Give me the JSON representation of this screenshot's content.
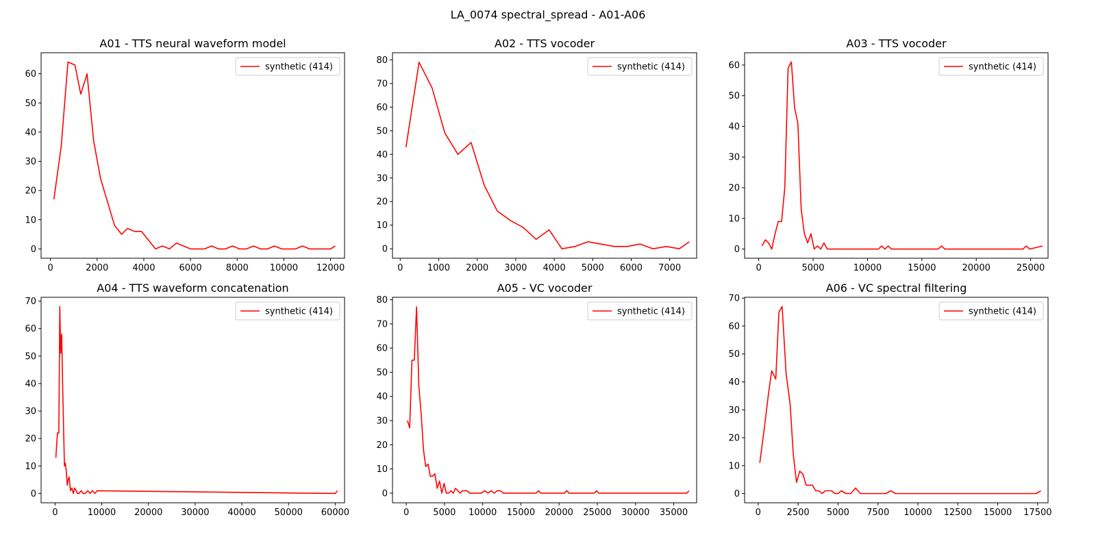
{
  "figure_title": "LA_0074 spectral_spread - A01-A06",
  "series_color": "#ff0000",
  "chart_data": [
    {
      "type": "line",
      "title": "A01 - TTS neural waveform model",
      "xlim": [
        -400,
        12600
      ],
      "ylim": [
        -3.2,
        67.2
      ],
      "xticks": [
        0,
        2000,
        4000,
        6000,
        8000,
        10000,
        12000
      ],
      "yticks": [
        0,
        10,
        20,
        30,
        40,
        50,
        60
      ],
      "legend": "synthetic (414)",
      "legend_position": "upper right",
      "series": [
        {
          "name": "synthetic (414)",
          "x": [
            150,
            460,
            750,
            1050,
            1300,
            1570,
            1850,
            2150,
            2450,
            2750,
            3050,
            3300,
            3600,
            3900,
            4200,
            4500,
            4800,
            5100,
            5400,
            5700,
            6000,
            6300,
            6600,
            6900,
            7200,
            7500,
            7800,
            8100,
            8400,
            8700,
            9000,
            9300,
            9600,
            9900,
            10200,
            10500,
            10800,
            11100,
            11400,
            11700,
            12000,
            12200
          ],
          "y": [
            17,
            35,
            64,
            63,
            53,
            60,
            37,
            24,
            16,
            8,
            5,
            7,
            6,
            6,
            3,
            0,
            1,
            0,
            2,
            1,
            0,
            0,
            0,
            1,
            0,
            0,
            1,
            0,
            0,
            1,
            0,
            0,
            1,
            0,
            0,
            0,
            1,
            0,
            0,
            0,
            0,
            1
          ]
        }
      ]
    },
    {
      "type": "line",
      "title": "A02 - TTS vocoder",
      "xlim": [
        -200,
        7700
      ],
      "ylim": [
        -4,
        83
      ],
      "xticks": [
        0,
        1000,
        2000,
        3000,
        4000,
        5000,
        6000,
        7000
      ],
      "yticks": [
        0,
        10,
        20,
        30,
        40,
        50,
        60,
        70,
        80
      ],
      "legend": "synthetic (414)",
      "legend_position": "upper right",
      "series": [
        {
          "name": "synthetic (414)",
          "x": [
            150,
            490,
            830,
            1160,
            1500,
            1840,
            2180,
            2520,
            2860,
            3200,
            3530,
            3870,
            4200,
            4540,
            4880,
            5220,
            5560,
            5900,
            6230,
            6570,
            6910,
            7250,
            7510
          ],
          "y": [
            43,
            79,
            68,
            49,
            40,
            45,
            27,
            16,
            12,
            9,
            4,
            8,
            0,
            1,
            3,
            2,
            1,
            1,
            2,
            0,
            1,
            0,
            3
          ]
        }
      ]
    },
    {
      "type": "line",
      "title": "A03 - TTS vocoder",
      "xlim": [
        -1300,
        26600
      ],
      "ylim": [
        -3,
        64
      ],
      "xticks": [
        0,
        5000,
        10000,
        15000,
        20000,
        25000
      ],
      "yticks": [
        0,
        10,
        20,
        30,
        40,
        50,
        60
      ],
      "legend": "synthetic (414)",
      "legend_position": "upper right",
      "series": [
        {
          "name": "synthetic (414)",
          "x": [
            300,
            600,
            900,
            1200,
            1500,
            1800,
            2100,
            2400,
            2700,
            3000,
            3300,
            3600,
            3900,
            4200,
            4500,
            4800,
            5100,
            5400,
            5700,
            6000,
            6300,
            11000,
            11300,
            11600,
            11900,
            12200,
            16500,
            16800,
            17100,
            24300,
            24600,
            24900,
            26100
          ],
          "y": [
            1,
            3,
            2,
            0,
            5,
            9,
            9,
            20,
            59,
            61,
            46,
            41,
            13,
            5,
            2,
            5,
            0,
            1,
            0,
            2,
            0,
            0,
            1,
            0,
            1,
            0,
            0,
            1,
            0,
            0,
            1,
            0,
            1
          ]
        }
      ]
    },
    {
      "type": "line",
      "title": "A04 - TTS waveform concatenation",
      "xlim": [
        -3000,
        62000
      ],
      "ylim": [
        -3.4,
        71.4
      ],
      "xticks": [
        0,
        10000,
        20000,
        30000,
        40000,
        50000,
        60000
      ],
      "yticks": [
        0,
        10,
        20,
        30,
        40,
        50,
        60,
        70
      ],
      "legend": "synthetic (414)",
      "legend_position": "upper right",
      "series": [
        {
          "name": "synthetic (414)",
          "x": [
            150,
            500,
            800,
            1000,
            1200,
            1400,
            1600,
            1800,
            2000,
            2200,
            2400,
            2600,
            2800,
            3000,
            3300,
            3600,
            3900,
            4200,
            4500,
            4800,
            5100,
            5600,
            6000,
            6500,
            7000,
            7500,
            8000,
            8500,
            9000,
            60000,
            60500
          ],
          "y": [
            13,
            22,
            22,
            68,
            51,
            58,
            40,
            25,
            10,
            11,
            8,
            3,
            5,
            6,
            1,
            2,
            0,
            2,
            1,
            0,
            0,
            1,
            0,
            0,
            1,
            0,
            1,
            0,
            1,
            0,
            1
          ]
        }
      ]
    },
    {
      "type": "line",
      "title": "A05 - VC vocoder",
      "xlim": [
        -1800,
        38000
      ],
      "ylim": [
        -4,
        81
      ],
      "xticks": [
        0,
        5000,
        10000,
        15000,
        20000,
        25000,
        30000,
        35000
      ],
      "yticks": [
        0,
        10,
        20,
        30,
        40,
        50,
        60,
        70,
        80
      ],
      "legend": "synthetic (414)",
      "legend_position": "upper right",
      "series": [
        {
          "name": "synthetic (414)",
          "x": [
            150,
            450,
            750,
            1050,
            1350,
            1650,
            1950,
            2250,
            2550,
            2850,
            3150,
            3450,
            3750,
            4050,
            4350,
            4650,
            4950,
            5250,
            5550,
            5850,
            6150,
            6450,
            6750,
            7050,
            7350,
            7650,
            7950,
            8300,
            9800,
            10300,
            10700,
            11100,
            11500,
            11900,
            12300,
            12700,
            17000,
            17300,
            17600,
            20700,
            21000,
            21300,
            24600,
            24900,
            25200,
            36700,
            37000
          ],
          "y": [
            30,
            27,
            55,
            55,
            77,
            44,
            33,
            18,
            11,
            12,
            7,
            7,
            8,
            2,
            5,
            0,
            4,
            0,
            0,
            1,
            0,
            2,
            1,
            0,
            1,
            1,
            1,
            0,
            0,
            1,
            0,
            1,
            0,
            1,
            1,
            0,
            0,
            1,
            0,
            0,
            1,
            0,
            0,
            1,
            0,
            0,
            1
          ]
        }
      ]
    },
    {
      "type": "line",
      "title": "A06 - VC spectral filtering",
      "xlim": [
        -850,
        18150
      ],
      "ylim": [
        -3.3,
        70.3
      ],
      "xticks": [
        0,
        2500,
        5000,
        7500,
        10000,
        12500,
        15000,
        17500
      ],
      "yticks": [
        0,
        10,
        20,
        30,
        40,
        50,
        60,
        70
      ],
      "legend": "synthetic (414)",
      "legend_position": "upper right",
      "series": [
        {
          "name": "synthetic (414)",
          "x": [
            100,
            400,
            650,
            850,
            1100,
            1300,
            1500,
            1750,
            2000,
            2200,
            2400,
            2600,
            2800,
            3000,
            3200,
            3400,
            3600,
            3800,
            4000,
            4200,
            4400,
            4600,
            4800,
            5000,
            5200,
            5500,
            5800,
            6100,
            6400,
            8000,
            8300,
            8600,
            17400,
            17700
          ],
          "y": [
            11,
            24,
            36,
            44,
            41,
            65,
            67,
            43,
            32,
            14,
            4,
            8,
            7,
            3,
            3,
            3,
            1,
            1,
            0,
            1,
            1,
            1,
            0,
            0,
            1,
            0,
            0,
            2,
            0,
            0,
            1,
            0,
            0,
            1
          ]
        }
      ]
    }
  ]
}
